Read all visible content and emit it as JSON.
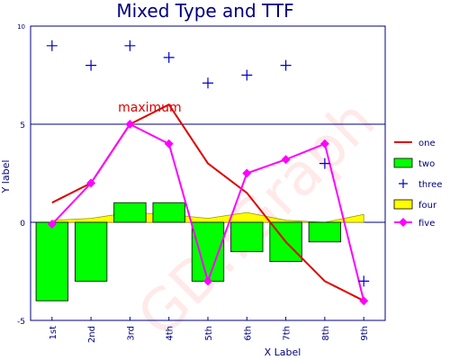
{
  "chart_data": {
    "type": "mixed",
    "title": "Mixed Type and TTF",
    "xlabel": "X Label",
    "ylabel": "Y label",
    "ylim": [
      -5,
      10
    ],
    "yticks": [
      -5,
      0,
      5,
      10
    ],
    "categories": [
      "1st",
      "2nd",
      "3rd",
      "4th",
      "5th",
      "6th",
      "7th",
      "8th",
      "9th"
    ],
    "grid": "horizontal at 5",
    "legend_position": "right",
    "watermark": "GD::Graph",
    "annotation": {
      "text": "maximum",
      "category": "3rd",
      "value": 5
    },
    "series": [
      {
        "name": "one",
        "kind": "line",
        "color": "#e00000",
        "values": [
          1,
          2,
          5,
          6,
          3,
          1.5,
          -1,
          -3,
          -4
        ]
      },
      {
        "name": "two",
        "kind": "bar",
        "color": "#00ff00",
        "values": [
          -4,
          -3,
          1,
          1,
          -3,
          -1.5,
          -2,
          -1,
          0
        ]
      },
      {
        "name": "three",
        "kind": "points",
        "color": "#0000cc",
        "values": [
          9,
          8,
          9,
          8.4,
          7.1,
          7.5,
          8,
          3,
          -3
        ]
      },
      {
        "name": "four",
        "kind": "area",
        "color": "#ffff00",
        "values": [
          0.1,
          0.2,
          0.5,
          0.4,
          0.2,
          0.5,
          0.1,
          0,
          0.4
        ]
      },
      {
        "name": "five",
        "kind": "linespoints",
        "color": "#ff00ff",
        "values": [
          -0.1,
          2,
          5,
          4,
          -3,
          2.5,
          3.2,
          4,
          -4
        ]
      }
    ]
  }
}
